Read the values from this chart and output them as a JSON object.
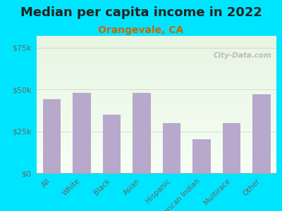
{
  "title": "Median per capita income in 2022",
  "subtitle": "Orangevale, CA",
  "categories": [
    "All",
    "White",
    "Black",
    "Asian",
    "Hispanic",
    "American Indian",
    "Multirace",
    "Other"
  ],
  "values": [
    44000,
    48000,
    35000,
    48000,
    30000,
    20000,
    30000,
    47000
  ],
  "bar_color": "#b8a8cc",
  "background_outer": "#00e5ff",
  "title_color": "#222222",
  "subtitle_color": "#cc6600",
  "ytick_labels": [
    "$0",
    "$25k",
    "$50k",
    "$75k"
  ],
  "ytick_values": [
    0,
    25000,
    50000,
    75000
  ],
  "ylim": [
    0,
    82000
  ],
  "watermark": "City-Data.com",
  "title_fontsize": 13,
  "subtitle_fontsize": 10,
  "tick_label_fontsize": 7.5,
  "ytick_fontsize": 8,
  "grad_top": "#e8f5e2",
  "grad_bottom": "#f5fff5"
}
